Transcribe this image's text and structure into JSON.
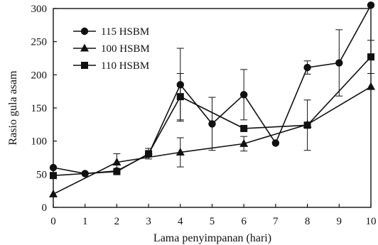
{
  "chart_data": {
    "type": "line",
    "xlabel": "Lama penyimpanan (hari)",
    "ylabel": "Rasio gula asam",
    "xlim": [
      0,
      10
    ],
    "ylim": [
      0,
      300
    ],
    "x_ticks": [
      0,
      1,
      2,
      3,
      4,
      5,
      6,
      7,
      8,
      9,
      10
    ],
    "y_ticks": [
      0,
      50,
      100,
      150,
      200,
      250,
      300
    ],
    "legend_position": "top-left",
    "grid": false,
    "series": [
      {
        "name": "115 HSBM",
        "marker": "circle",
        "x": [
          0,
          1,
          2,
          3,
          4,
          5,
          6,
          7,
          8,
          9,
          10
        ],
        "y": [
          60,
          51,
          55,
          80,
          185,
          126,
          170,
          97,
          211,
          218,
          305
        ],
        "error": [
          0,
          0,
          0,
          0,
          55,
          40,
          38,
          0,
          10,
          50,
          0
        ]
      },
      {
        "name": "100 HSBM",
        "marker": "triangle",
        "x": [
          0,
          2,
          4,
          6,
          8,
          10
        ],
        "y": [
          20,
          68,
          83,
          96,
          125,
          182
        ],
        "error": [
          0,
          13,
          22,
          11,
          0,
          0
        ]
      },
      {
        "name": "110 HSBM",
        "marker": "square",
        "x": [
          0,
          2,
          3,
          4,
          6,
          8,
          10
        ],
        "y": [
          48,
          54,
          81,
          167,
          119,
          124,
          227
        ],
        "error": [
          0,
          0,
          8,
          35,
          0,
          38,
          25
        ]
      }
    ]
  }
}
